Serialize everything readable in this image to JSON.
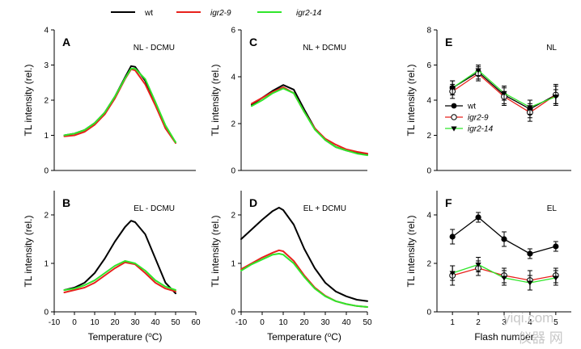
{
  "legend_top": [
    {
      "label": "wt",
      "color": "#000000",
      "italic": false
    },
    {
      "label": "igr2-9",
      "color": "#e8211c",
      "italic": true
    },
    {
      "label": "igr2-14",
      "color": "#2fe62a",
      "italic": true
    }
  ],
  "colors": {
    "wt": "#000000",
    "igr2_9": "#e8211c",
    "igr2_14": "#2fe62a"
  },
  "watermark": {
    "line1": "yiqi.com",
    "line2": "仪器 网"
  },
  "chart_data": [
    {
      "panel": "A",
      "condition": "NL - DCMU",
      "type": "line",
      "xlabel": "",
      "ylabel": "TL intensity (rel.)",
      "xlim": [
        -10,
        60
      ],
      "ylim": [
        0,
        4
      ],
      "yticks": [
        0,
        1,
        2,
        3,
        4
      ],
      "series": [
        {
          "name": "wt",
          "x": [
            -5,
            0,
            5,
            10,
            15,
            20,
            25,
            28,
            30,
            35,
            40,
            45,
            50
          ],
          "y": [
            1.0,
            1.05,
            1.15,
            1.35,
            1.65,
            2.1,
            2.65,
            2.97,
            2.95,
            2.55,
            1.9,
            1.2,
            0.8
          ]
        },
        {
          "name": "igr2-9",
          "x": [
            -5,
            0,
            5,
            10,
            15,
            20,
            25,
            28,
            30,
            35,
            40,
            45,
            50
          ],
          "y": [
            0.97,
            1.0,
            1.1,
            1.3,
            1.6,
            2.05,
            2.6,
            2.88,
            2.85,
            2.45,
            1.85,
            1.2,
            0.78
          ]
        },
        {
          "name": "igr2-14",
          "x": [
            -5,
            0,
            5,
            10,
            15,
            20,
            25,
            28,
            30,
            35,
            40,
            45,
            50
          ],
          "y": [
            1.0,
            1.05,
            1.15,
            1.35,
            1.65,
            2.1,
            2.62,
            2.9,
            2.9,
            2.6,
            1.95,
            1.28,
            0.8
          ]
        }
      ]
    },
    {
      "panel": "B",
      "condition": "EL - DCMU",
      "type": "line",
      "xlabel": "Temperature (°C)",
      "ylabel": "TL intensity (rel.)",
      "xlim": [
        -10,
        60
      ],
      "ylim": [
        0,
        2.5
      ],
      "yticks": [
        0,
        1,
        2
      ],
      "xticks": [
        -10,
        0,
        10,
        20,
        30,
        40,
        50,
        60
      ],
      "series": [
        {
          "name": "wt",
          "x": [
            -5,
            0,
            5,
            10,
            15,
            20,
            25,
            28,
            30,
            35,
            40,
            45,
            50
          ],
          "y": [
            0.45,
            0.5,
            0.6,
            0.8,
            1.1,
            1.45,
            1.75,
            1.88,
            1.85,
            1.6,
            1.1,
            0.6,
            0.38
          ]
        },
        {
          "name": "igr2-9",
          "x": [
            -5,
            0,
            5,
            10,
            15,
            20,
            25,
            30,
            35,
            40,
            45,
            50
          ],
          "y": [
            0.4,
            0.45,
            0.5,
            0.6,
            0.75,
            0.9,
            1.02,
            0.98,
            0.8,
            0.6,
            0.48,
            0.42
          ]
        },
        {
          "name": "igr2-14",
          "x": [
            -5,
            0,
            5,
            10,
            15,
            20,
            25,
            30,
            35,
            40,
            45,
            50
          ],
          "y": [
            0.45,
            0.48,
            0.55,
            0.65,
            0.8,
            0.95,
            1.05,
            1.0,
            0.85,
            0.65,
            0.52,
            0.45
          ]
        }
      ]
    },
    {
      "panel": "C",
      "condition": "NL + DCMU",
      "type": "line",
      "xlabel": "",
      "ylabel": "TL intensity (rel.)",
      "xlim": [
        -10,
        50
      ],
      "ylim": [
        0,
        6
      ],
      "yticks": [
        0,
        2,
        4,
        6
      ],
      "series": [
        {
          "name": "wt",
          "x": [
            -5,
            0,
            5,
            10,
            15,
            20,
            25,
            30,
            35,
            40,
            45,
            50
          ],
          "y": [
            2.8,
            3.1,
            3.4,
            3.65,
            3.45,
            2.6,
            1.8,
            1.3,
            1.0,
            0.85,
            0.75,
            0.7
          ]
        },
        {
          "name": "igr2-9",
          "x": [
            -5,
            0,
            5,
            10,
            15,
            20,
            25,
            30,
            35,
            40,
            45,
            50
          ],
          "y": [
            2.85,
            3.1,
            3.35,
            3.55,
            3.3,
            2.5,
            1.8,
            1.35,
            1.1,
            0.9,
            0.8,
            0.72
          ]
        },
        {
          "name": "igr2-14",
          "x": [
            -5,
            0,
            5,
            10,
            15,
            20,
            25,
            30,
            35,
            40,
            45,
            50
          ],
          "y": [
            2.75,
            3.0,
            3.3,
            3.5,
            3.3,
            2.5,
            1.75,
            1.3,
            1.0,
            0.85,
            0.72,
            0.65
          ]
        }
      ]
    },
    {
      "panel": "D",
      "condition": "EL + DCMU",
      "type": "line",
      "xlabel": "Temperature (°C)",
      "ylabel": "TL intensity (rel.)",
      "xlim": [
        -10,
        50
      ],
      "ylim": [
        0,
        2.5
      ],
      "yticks": [
        0,
        1,
        2
      ],
      "xticks": [
        -10,
        0,
        10,
        20,
        30,
        40,
        50
      ],
      "series": [
        {
          "name": "wt",
          "x": [
            -10,
            -5,
            0,
            5,
            8,
            10,
            15,
            20,
            25,
            30,
            35,
            40,
            45,
            50
          ],
          "y": [
            1.5,
            1.7,
            1.9,
            2.08,
            2.15,
            2.1,
            1.8,
            1.3,
            0.9,
            0.6,
            0.42,
            0.32,
            0.25,
            0.22
          ]
        },
        {
          "name": "igr2-9",
          "x": [
            -10,
            -5,
            0,
            5,
            8,
            10,
            15,
            20,
            25,
            30,
            35,
            40,
            45,
            50
          ],
          "y": [
            0.88,
            1.0,
            1.12,
            1.22,
            1.27,
            1.25,
            1.05,
            0.75,
            0.5,
            0.33,
            0.22,
            0.16,
            0.12,
            0.1
          ]
        },
        {
          "name": "igr2-14",
          "x": [
            -10,
            -5,
            0,
            5,
            8,
            10,
            15,
            20,
            25,
            30,
            35,
            40,
            45,
            50
          ],
          "y": [
            0.85,
            0.98,
            1.08,
            1.18,
            1.2,
            1.18,
            1.0,
            0.72,
            0.48,
            0.32,
            0.22,
            0.16,
            0.12,
            0.1
          ]
        }
      ]
    },
    {
      "panel": "E",
      "condition": "NL",
      "type": "line",
      "xlabel": "",
      "ylabel": "TL intensity (rel.)",
      "xlim": [
        0.4,
        5.6
      ],
      "ylim": [
        0,
        8
      ],
      "yticks": [
        0,
        2,
        4,
        6,
        8
      ],
      "legend": [
        {
          "name": "wt",
          "marker": "filled-circle"
        },
        {
          "name": "igr2-9",
          "marker": "open-circle"
        },
        {
          "name": "igr2-14",
          "marker": "filled-triangle-down"
        }
      ],
      "series": [
        {
          "name": "wt",
          "x": [
            1,
            2,
            3,
            4,
            5
          ],
          "y": [
            4.7,
            5.6,
            4.3,
            3.5,
            4.3
          ],
          "err": [
            0.4,
            0.4,
            0.5,
            0.5,
            0.5
          ]
        },
        {
          "name": "igr2-9",
          "x": [
            1,
            2,
            3,
            4,
            5
          ],
          "y": [
            4.5,
            5.5,
            4.2,
            3.3,
            4.3
          ],
          "err": [
            0.4,
            0.4,
            0.5,
            0.5,
            0.6
          ]
        },
        {
          "name": "igr2-14",
          "x": [
            1,
            2,
            3,
            4,
            5
          ],
          "y": [
            4.7,
            5.7,
            4.4,
            3.6,
            4.2
          ],
          "err": [
            0.4,
            0.3,
            0.4,
            0.4,
            0.4
          ]
        }
      ]
    },
    {
      "panel": "F",
      "condition": "EL",
      "type": "line",
      "xlabel": "Flash number",
      "ylabel": "TL intensity (rel.)",
      "xlim": [
        0.4,
        5.6
      ],
      "ylim": [
        0,
        5
      ],
      "yticks": [
        0,
        2,
        4
      ],
      "xticks": [
        1,
        2,
        3,
        4,
        5
      ],
      "series": [
        {
          "name": "wt",
          "x": [
            1,
            2,
            3,
            4,
            5
          ],
          "y": [
            3.1,
            3.9,
            3.0,
            2.4,
            2.7
          ],
          "err": [
            0.3,
            0.2,
            0.3,
            0.2,
            0.2
          ]
        },
        {
          "name": "igr2-9",
          "x": [
            1,
            2,
            3,
            4,
            5
          ],
          "y": [
            1.5,
            1.8,
            1.5,
            1.3,
            1.5
          ],
          "err": [
            0.4,
            0.3,
            0.3,
            0.4,
            0.3
          ]
        },
        {
          "name": "igr2-14",
          "x": [
            1,
            2,
            3,
            4,
            5
          ],
          "y": [
            1.6,
            1.95,
            1.4,
            1.2,
            1.4
          ],
          "err": [
            0.3,
            0.3,
            0.3,
            0.3,
            0.3
          ]
        }
      ]
    }
  ]
}
